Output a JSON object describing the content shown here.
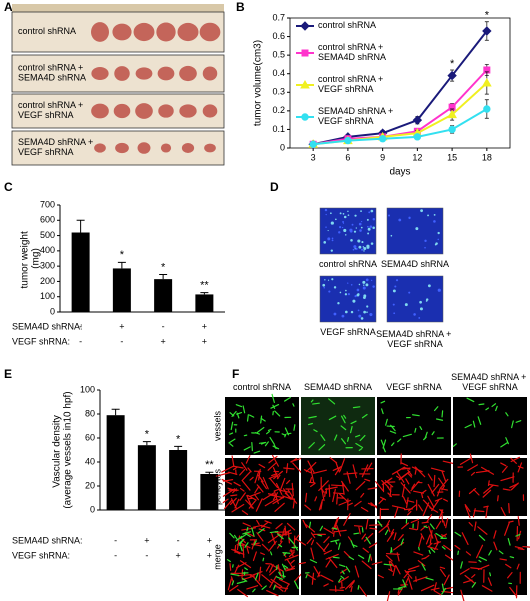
{
  "panel_labels": [
    "A",
    "B",
    "C",
    "D",
    "E",
    "F"
  ],
  "panel_a": {
    "rows": [
      "control shRNA",
      "control shRNA + SEMA4D shRNA",
      "control shRNA + VEGF shRNA",
      "SEMA4D shRNA + VEGF shRNA"
    ]
  },
  "chart_data": [
    {
      "type": "line",
      "ylabel": "tumor volume(cm3)",
      "xlabel": "days",
      "x": [
        3,
        6,
        9,
        12,
        15,
        18
      ],
      "xlim": [
        1,
        20
      ],
      "xticks": [
        3,
        6,
        9,
        12,
        15,
        18
      ],
      "ylim": [
        0,
        0.7
      ],
      "yticks": [
        0,
        0.1,
        0.2,
        0.3,
        0.4,
        0.5,
        0.6,
        0.7
      ],
      "series": [
        {
          "name": "control shRNA",
          "color": "#1a1a7a",
          "marker": "diamond",
          "values": [
            0.02,
            0.06,
            0.08,
            0.15,
            0.39,
            0.63
          ],
          "errors": [
            0.005,
            0.01,
            0.015,
            0.02,
            0.03,
            0.05
          ]
        },
        {
          "name": "control shRNA + SEMA4D shRNA",
          "color": "#ff33cc",
          "marker": "square",
          "values": [
            0.02,
            0.05,
            0.06,
            0.09,
            0.22,
            0.42
          ],
          "errors": [
            0.005,
            0.01,
            0.01,
            0.015,
            0.02,
            0.03
          ]
        },
        {
          "name": "control shRNA + VEGF shRNA",
          "color": "#f0f020",
          "marker": "triangle",
          "values": [
            0.02,
            0.04,
            0.06,
            0.08,
            0.18,
            0.35
          ],
          "errors": [
            0.005,
            0.01,
            0.01,
            0.015,
            0.03,
            0.06
          ]
        },
        {
          "name": "SEMA4D shRNA + VEGF shRNA",
          "color": "#33e0f0",
          "marker": "circle",
          "values": [
            0.02,
            0.04,
            0.05,
            0.06,
            0.1,
            0.21
          ],
          "errors": [
            0.005,
            0.005,
            0.01,
            0.01,
            0.02,
            0.05
          ]
        }
      ],
      "annotations": [
        {
          "text": "*",
          "x": 15
        },
        {
          "text": "*",
          "x": 18
        }
      ]
    },
    {
      "type": "bar",
      "ylabel": "tumor weight (mg)",
      "color": "#000000",
      "values": [
        520,
        285,
        215,
        115
      ],
      "errors": [
        80,
        40,
        30,
        12
      ],
      "annotations": [
        null,
        "*",
        "*",
        "**"
      ],
      "ylim": [
        0,
        700
      ],
      "yticks": [
        0,
        100,
        200,
        300,
        400,
        500,
        600,
        700
      ],
      "conditions": [
        {
          "label": "SEMA4D shRNA:",
          "signs": [
            "-",
            "+",
            "-",
            "+"
          ]
        },
        {
          "label": "VEGF shRNA:",
          "signs": [
            "-",
            "-",
            "+",
            "+"
          ]
        }
      ]
    },
    {
      "type": "bar",
      "ylabel": "Vascular density (average vessels in10 hpf)",
      "color": "#000000",
      "values": [
        79,
        54,
        50,
        30
      ],
      "errors": [
        5,
        3,
        3,
        1.5
      ],
      "annotations": [
        null,
        "*",
        "*",
        "**"
      ],
      "ylim": [
        0,
        100
      ],
      "yticks": [
        0,
        20,
        40,
        60,
        80,
        100
      ],
      "conditions": [
        {
          "label": "SEMA4D shRNA:",
          "signs": [
            "-",
            "+",
            "-",
            "+"
          ]
        },
        {
          "label": "VEGF shRNA:",
          "signs": [
            "-",
            "-",
            "+",
            "+"
          ]
        }
      ]
    }
  ],
  "panel_d": {
    "captions": [
      "control shRNA",
      "SEMA4D shRNA",
      "VEGF shRNA",
      "SEMA4D shRNA + VEGF shRNA"
    ]
  },
  "panel_f": {
    "columns": [
      "control  shRNA",
      "SEMA4D shRNA",
      "VEGF shRNA",
      "SEMA4D shRNA + VEGF shRNA"
    ],
    "rows": [
      "vessels",
      "pericytes",
      "merge"
    ]
  }
}
